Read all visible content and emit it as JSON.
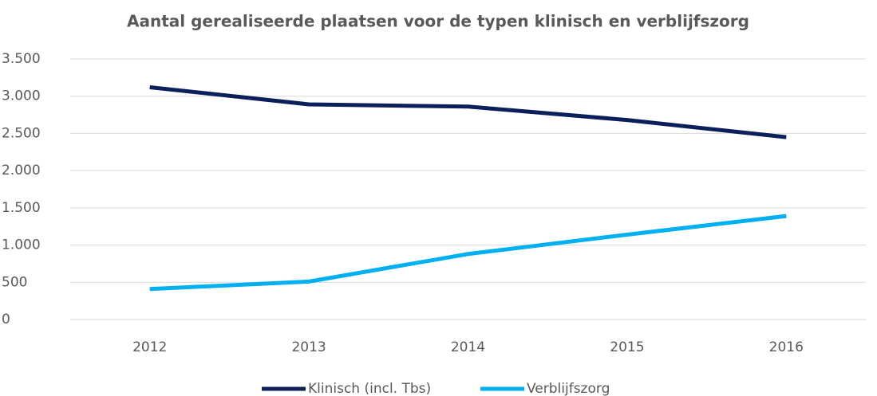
{
  "chart_data": {
    "type": "line",
    "title": "Aantal gerealiseerde plaatsen voor de typen klinisch en verblijfszorg",
    "categories": [
      "2012",
      "2013",
      "2014",
      "2015",
      "2016"
    ],
    "series": [
      {
        "name": "Klinisch (incl. Tbs)",
        "color": "#0b1f5b",
        "values": [
          3120,
          2890,
          2860,
          2680,
          2450
        ]
      },
      {
        "name": "Verblijfszorg",
        "color": "#00b0f0",
        "values": [
          410,
          510,
          880,
          1140,
          1390
        ]
      }
    ],
    "ylim": [
      0,
      3500
    ],
    "yticks": [
      0,
      500,
      {
        "value": 1000,
        "label": "1.000"
      },
      {
        "value": 1500,
        "label": "1.500"
      },
      {
        "value": 2000,
        "label": "2.000"
      },
      {
        "value": 2500,
        "label": "2.500"
      },
      {
        "value": 3000,
        "label": "3.000"
      },
      {
        "value": 3500,
        "label": "3.500"
      }
    ],
    "grid": true,
    "legend": "bottom"
  }
}
